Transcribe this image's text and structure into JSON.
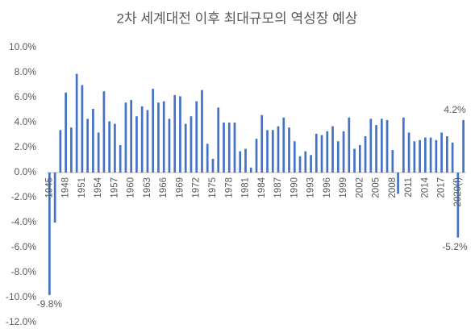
{
  "chart_data": {
    "type": "bar",
    "title": "2차 세계대전 이후 최대규모의 역성장 예상",
    "categories": [
      "1945",
      null,
      null,
      "1948",
      null,
      null,
      "1951",
      null,
      null,
      "1954",
      null,
      null,
      "1957",
      null,
      null,
      "1960",
      null,
      null,
      "1963",
      null,
      null,
      "1966",
      null,
      null,
      "1969",
      null,
      null,
      "1972",
      null,
      null,
      "1975",
      null,
      null,
      "1978",
      null,
      null,
      "1981",
      null,
      null,
      "1984",
      null,
      null,
      "1987",
      null,
      null,
      "1990",
      null,
      null,
      "1993",
      null,
      null,
      "1996",
      null,
      null,
      "1999",
      null,
      null,
      "2002",
      null,
      null,
      "2005",
      null,
      null,
      "2008",
      null,
      null,
      "2011",
      null,
      null,
      "2014",
      null,
      null,
      "2017",
      null,
      null,
      "2020(f)",
      null
    ],
    "values": [
      -9.8,
      -4.0,
      3.4,
      6.4,
      3.6,
      7.9,
      7.0,
      4.3,
      5.1,
      3.2,
      6.5,
      4.1,
      3.9,
      2.2,
      5.6,
      5.8,
      4.5,
      5.3,
      5.0,
      6.7,
      5.6,
      5.7,
      4.3,
      6.2,
      6.1,
      3.9,
      4.5,
      5.7,
      6.6,
      2.3,
      1.1,
      5.2,
      4.0,
      4.0,
      4.0,
      1.7,
      1.9,
      0.4,
      2.7,
      4.6,
      3.4,
      3.4,
      3.7,
      4.4,
      3.6,
      2.5,
      1.3,
      1.7,
      1.4,
      3.1,
      3.0,
      3.3,
      3.7,
      2.5,
      3.3,
      4.4,
      1.9,
      2.2,
      2.9,
      4.3,
      3.8,
      4.3,
      4.2,
      1.8,
      -1.7,
      4.4,
      3.2,
      2.5,
      2.6,
      2.8,
      2.8,
      2.6,
      3.2,
      2.9,
      2.4,
      -5.2,
      4.2
    ],
    "value_labels": [
      "-9.8%",
      null,
      null,
      null,
      null,
      null,
      null,
      null,
      null,
      null,
      null,
      null,
      null,
      null,
      null,
      null,
      null,
      null,
      null,
      null,
      null,
      null,
      null,
      null,
      null,
      null,
      null,
      null,
      null,
      null,
      null,
      null,
      null,
      null,
      null,
      null,
      null,
      null,
      null,
      null,
      null,
      null,
      null,
      null,
      null,
      null,
      null,
      null,
      null,
      null,
      null,
      null,
      null,
      null,
      null,
      null,
      null,
      null,
      null,
      null,
      null,
      null,
      null,
      null,
      null,
      null,
      null,
      null,
      null,
      null,
      null,
      null,
      null,
      null,
      null,
      "-5.2%",
      "4.2%"
    ],
    "color": "#4472c4",
    "ylim": [
      -12,
      10
    ],
    "yticks": [
      {
        "value": -12,
        "label": "-12.0%"
      },
      {
        "value": -10,
        "label": "-10.0%"
      },
      {
        "value": -8,
        "label": "-8.0%"
      },
      {
        "value": -6,
        "label": "-6.0%"
      },
      {
        "value": -4,
        "label": "-4.0%"
      },
      {
        "value": -2,
        "label": "-2.0%"
      },
      {
        "value": 0,
        "label": "0.0%"
      },
      {
        "value": 2,
        "label": "2.0%"
      },
      {
        "value": 4,
        "label": "4.0%"
      },
      {
        "value": 6,
        "label": "6.0%"
      },
      {
        "value": 8,
        "label": "8.0%"
      },
      {
        "value": 10,
        "label": "10.0%"
      }
    ],
    "grid": false
  }
}
